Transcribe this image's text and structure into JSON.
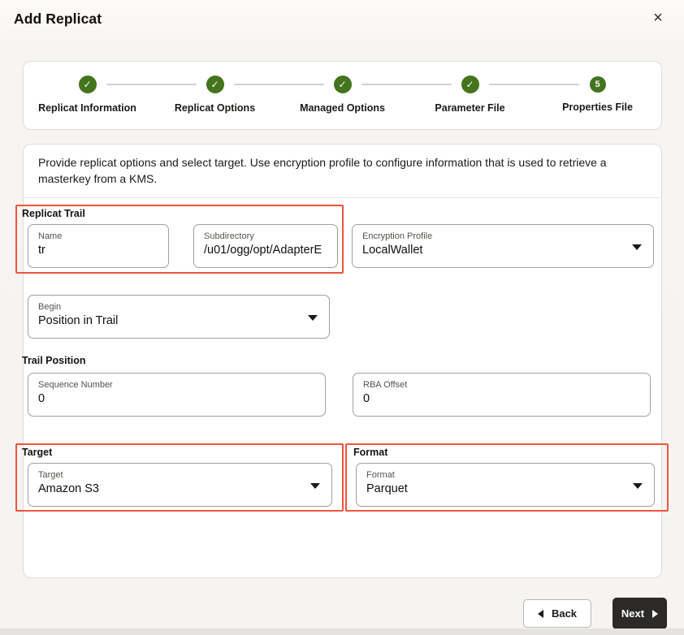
{
  "dialog": {
    "title": "Add Replicat"
  },
  "icons": {
    "close": "×",
    "check": "✓"
  },
  "stepper": {
    "steps": [
      {
        "label": "Replicat Information",
        "state": "complete"
      },
      {
        "label": "Replicat Options",
        "state": "complete"
      },
      {
        "label": "Managed Options",
        "state": "complete"
      },
      {
        "label": "Parameter File",
        "state": "complete"
      },
      {
        "label": "Properties File",
        "state": "current",
        "number": "5"
      }
    ]
  },
  "description": "Provide replicat options and select target. Use encryption profile to configure information that is used to retrieve a masterkey from a KMS.",
  "form": {
    "replicat_trail": {
      "section_label": "Replicat Trail",
      "name": {
        "label": "Name",
        "value": "tr"
      },
      "subdirectory": {
        "label": "Subdirectory",
        "value": "/u01/ogg/opt/AdapterE"
      }
    },
    "encryption_profile": {
      "label": "Encryption Profile",
      "value": "LocalWallet"
    },
    "begin": {
      "label": "Begin",
      "value": "Position in Trail"
    },
    "trail_position": {
      "section_label": "Trail Position",
      "sequence_number": {
        "label": "Sequence Number",
        "value": "0"
      },
      "rba_offset": {
        "label": "RBA Offset",
        "value": "0"
      }
    },
    "target": {
      "section_label": "Target",
      "select": {
        "label": "Target",
        "value": "Amazon S3"
      }
    },
    "format": {
      "section_label": "Format",
      "select": {
        "label": "Format",
        "value": "Parquet"
      }
    }
  },
  "footer": {
    "back_label": "Back",
    "next_label": "Next"
  },
  "colors": {
    "step_green": "#44741e",
    "highlight_red": "#f0543e",
    "next_button_bg": "#2b2a28"
  }
}
